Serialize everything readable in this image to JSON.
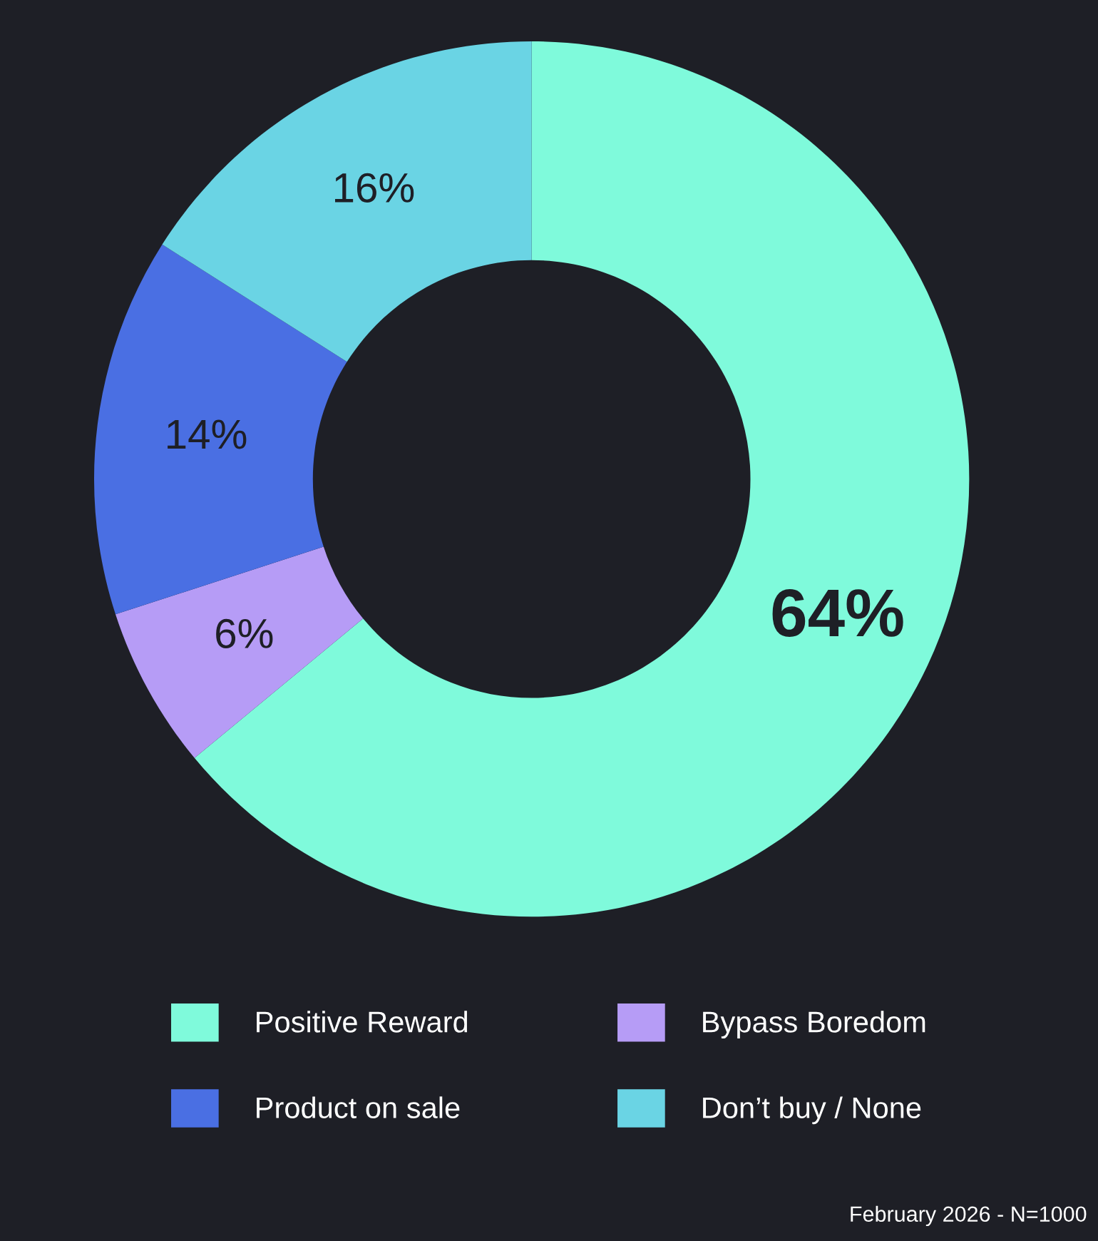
{
  "chart_data": {
    "type": "donut",
    "categories": [
      "Positive Reward",
      "Bypass Boredom",
      "Product on sale",
      "Don’t buy / None"
    ],
    "values": [
      64,
      6,
      14,
      16
    ],
    "colors": [
      "#7ffadb",
      "#b69cf6",
      "#4a6fe3",
      "#6ad4e4"
    ],
    "value_labels": [
      "64%",
      "6%",
      "14%",
      "16%"
    ],
    "legend": "bottom",
    "annotations": [
      "February 2026 - N=1000"
    ]
  }
}
